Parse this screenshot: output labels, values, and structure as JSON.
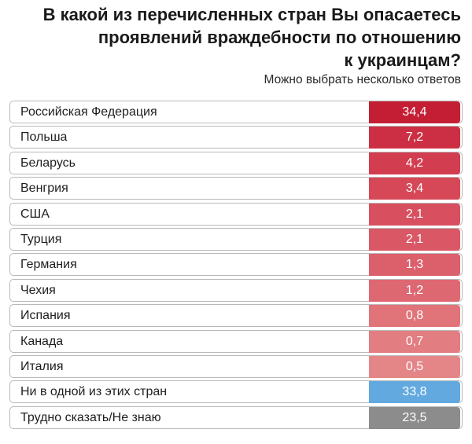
{
  "chart_data": {
    "type": "table",
    "title": "В какой из перечисленных стран Вы опасаетесь проявлений враждебности по отношению к украинцам?",
    "title_lines": [
      "В какой из перечисленных стран Вы опасаетесь",
      "проявлений враждебности по отношению",
      "к украинцам?"
    ],
    "subtitle": "Можно выбрать несколько ответов",
    "categories": [
      "Российская Федерация",
      "Польша",
      "Беларусь",
      "Венгрия",
      "США",
      "Турция",
      "Германия",
      "Чехия",
      "Испания",
      "Канада",
      "Италия",
      "Ни в одной из этих стран",
      "Трудно сказать/Не знаю"
    ],
    "values": [
      34.4,
      7.2,
      4.2,
      3.4,
      2.1,
      2.1,
      1.3,
      1.2,
      0.8,
      0.7,
      0.5,
      33.8,
      23.5
    ],
    "value_labels": [
      "34,4",
      "7,2",
      "4,2",
      "3,4",
      "2,1",
      "2,1",
      "1,3",
      "1,2",
      "0,8",
      "0,7",
      "0,5",
      "33,8",
      "23,5"
    ],
    "cell_colors": [
      "#c41e35",
      "#cc2f43",
      "#d23d50",
      "#d64857",
      "#d8505f",
      "#da5865",
      "#dc606c",
      "#de6872",
      "#e07479",
      "#e27d81",
      "#e48688",
      "#62a9e0",
      "#8c8c8c"
    ]
  }
}
